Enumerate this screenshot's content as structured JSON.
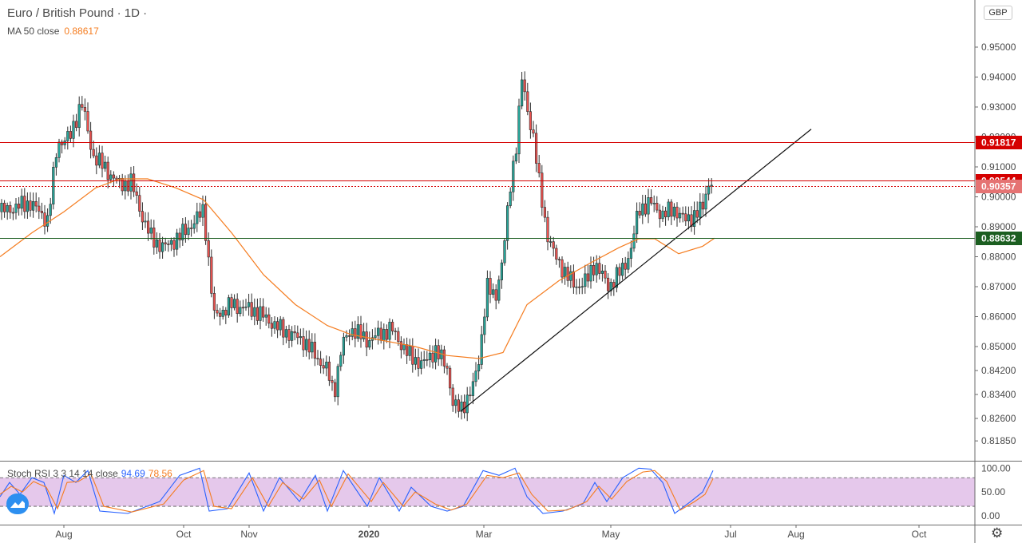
{
  "header": {
    "title": "Euro / British Pound · 1D ·",
    "ma_label": "MA 50 close",
    "ma_value": "0.88617",
    "currency": "GBP"
  },
  "stoch": {
    "label": "Stoch RSI 3 3 14 14 close",
    "k_value": "94.69",
    "d_value": "78.56"
  },
  "colors": {
    "up": "#26a69a",
    "down": "#ef5350",
    "ma": "#f57c1f",
    "resistance": "#d50000",
    "support": "#1b5e20",
    "stoch_k": "#2962ff",
    "stoch_d": "#f57c1f",
    "stoch_band": "#e1bee7"
  },
  "icons": {
    "logo": "tradingview-logo-icon",
    "settings": "gear-icon"
  },
  "chart_data": [
    {
      "type": "candlestick",
      "title": "Euro / British Pound · 1D ·",
      "ylim": [
        0.8125,
        0.9595
      ],
      "x_ticks": [
        "Aug",
        "Oct",
        "Nov",
        "2020",
        "Mar",
        "May",
        "Jul",
        "Aug",
        "Oct"
      ],
      "y_ticks": [
        "0.95000",
        "0.94000",
        "0.93000",
        "0.92000",
        "0.91000",
        "0.90000",
        "0.89000",
        "0.88000",
        "0.87000",
        "0.86000",
        "0.85000",
        "0.84200",
        "0.83400",
        "0.82600",
        "0.81850"
      ],
      "price_path": [
        [
          0,
          0.895
        ],
        [
          38,
          0.898
        ],
        [
          60,
          0.892
        ],
        [
          72,
          0.918
        ],
        [
          88,
          0.92
        ],
        [
          102,
          0.932
        ],
        [
          116,
          0.914
        ],
        [
          130,
          0.91
        ],
        [
          150,
          0.904
        ],
        [
          164,
          0.905
        ],
        [
          180,
          0.892
        ],
        [
          190,
          0.886
        ],
        [
          206,
          0.883
        ],
        [
          230,
          0.888
        ],
        [
          248,
          0.893
        ],
        [
          255,
          0.896
        ],
        [
          260,
          0.882
        ],
        [
          268,
          0.86
        ],
        [
          290,
          0.864
        ],
        [
          320,
          0.862
        ],
        [
          350,
          0.856
        ],
        [
          380,
          0.852
        ],
        [
          398,
          0.846
        ],
        [
          410,
          0.842
        ],
        [
          418,
          0.834
        ],
        [
          428,
          0.85
        ],
        [
          440,
          0.856
        ],
        [
          460,
          0.852
        ],
        [
          490,
          0.856
        ],
        [
          512,
          0.847
        ],
        [
          530,
          0.844
        ],
        [
          545,
          0.849
        ],
        [
          560,
          0.843
        ],
        [
          568,
          0.83
        ],
        [
          577,
          0.829
        ],
        [
          592,
          0.836
        ],
        [
          600,
          0.846
        ],
        [
          610,
          0.87
        ],
        [
          620,
          0.866
        ],
        [
          630,
          0.88
        ],
        [
          640,
          0.906
        ],
        [
          648,
          0.92
        ],
        [
          653,
          0.94
        ],
        [
          660,
          0.93
        ],
        [
          668,
          0.92
        ],
        [
          675,
          0.905
        ],
        [
          685,
          0.888
        ],
        [
          695,
          0.88
        ],
        [
          705,
          0.876
        ],
        [
          720,
          0.87
        ],
        [
          735,
          0.872
        ],
        [
          745,
          0.878
        ],
        [
          762,
          0.87
        ],
        [
          780,
          0.876
        ],
        [
          790,
          0.882
        ],
        [
          800,
          0.896
        ],
        [
          815,
          0.898
        ],
        [
          830,
          0.894
        ],
        [
          845,
          0.896
        ],
        [
          858,
          0.892
        ],
        [
          870,
          0.894
        ],
        [
          880,
          0.896
        ],
        [
          886,
          0.904
        ],
        [
          892,
          0.9054
        ]
      ],
      "candle_x_range": [
        0,
        893
      ],
      "ma50": [
        [
          0,
          0.88
        ],
        [
          40,
          0.888
        ],
        [
          80,
          0.895
        ],
        [
          120,
          0.903
        ],
        [
          150,
          0.906
        ],
        [
          185,
          0.906
        ],
        [
          220,
          0.903
        ],
        [
          255,
          0.899
        ],
        [
          290,
          0.888
        ],
        [
          330,
          0.874
        ],
        [
          370,
          0.864
        ],
        [
          410,
          0.857
        ],
        [
          440,
          0.854
        ],
        [
          480,
          0.852
        ],
        [
          520,
          0.85
        ],
        [
          560,
          0.847
        ],
        [
          600,
          0.846
        ],
        [
          630,
          0.848
        ],
        [
          660,
          0.864
        ],
        [
          700,
          0.872
        ],
        [
          740,
          0.878
        ],
        [
          775,
          0.883
        ],
        [
          800,
          0.886
        ],
        [
          820,
          0.886
        ],
        [
          850,
          0.881
        ],
        [
          880,
          0.8835
        ],
        [
          895,
          0.8862
        ]
      ],
      "trendline": [
        [
          577,
          0.8284
        ],
        [
          1016,
          0.9226
        ]
      ],
      "horizontal_lines": [
        {
          "label": "0.91817",
          "value": 0.91817,
          "role": "resistance",
          "style": "solid"
        },
        {
          "label": "0.90544",
          "value": 0.90544,
          "role": "resistance",
          "style": "solid"
        },
        {
          "label": "0.90357",
          "value": 0.90357,
          "role": "resistance",
          "style": "dotted"
        },
        {
          "label": "0.88632",
          "value": 0.88632,
          "role": "support",
          "style": "solid"
        }
      ],
      "grid": false
    },
    {
      "type": "line",
      "title": "Stoch RSI 3 3 14 14 close",
      "ylim": [
        -3,
        105
      ],
      "y_ticks": [
        "100.00",
        "50.00",
        "0.00"
      ],
      "band": [
        20,
        80
      ],
      "series": [
        {
          "name": "K",
          "values": [
            [
              0,
              40
            ],
            [
              12,
              70
            ],
            [
              25,
              45
            ],
            [
              40,
              80
            ],
            [
              55,
              70
            ],
            [
              68,
              5
            ],
            [
              80,
              85
            ],
            [
              95,
              70
            ],
            [
              110,
              95
            ],
            [
              125,
              10
            ],
            [
              160,
              5
            ],
            [
              200,
              30
            ],
            [
              225,
              85
            ],
            [
              250,
              100
            ],
            [
              262,
              10
            ],
            [
              285,
              15
            ],
            [
              312,
              90
            ],
            [
              330,
              10
            ],
            [
              350,
              80
            ],
            [
              375,
              30
            ],
            [
              395,
              85
            ],
            [
              410,
              10
            ],
            [
              430,
              95
            ],
            [
              460,
              20
            ],
            [
              475,
              80
            ],
            [
              500,
              10
            ],
            [
              515,
              60
            ],
            [
              540,
              20
            ],
            [
              560,
              10
            ],
            [
              580,
              20
            ],
            [
              605,
              95
            ],
            [
              625,
              85
            ],
            [
              645,
              100
            ],
            [
              660,
              40
            ],
            [
              680,
              5
            ],
            [
              705,
              10
            ],
            [
              730,
              25
            ],
            [
              745,
              70
            ],
            [
              760,
              30
            ],
            [
              780,
              80
            ],
            [
              800,
              100
            ],
            [
              815,
              98
            ],
            [
              830,
              70
            ],
            [
              845,
              5
            ],
            [
              865,
              30
            ],
            [
              880,
              50
            ],
            [
              893,
              95
            ]
          ]
        },
        {
          "name": "D",
          "values": [
            [
              0,
              45
            ],
            [
              14,
              62
            ],
            [
              28,
              50
            ],
            [
              42,
              72
            ],
            [
              58,
              60
            ],
            [
              72,
              15
            ],
            [
              84,
              70
            ],
            [
              98,
              72
            ],
            [
              114,
              88
            ],
            [
              130,
              20
            ],
            [
              165,
              8
            ],
            [
              205,
              25
            ],
            [
              230,
              75
            ],
            [
              255,
              95
            ],
            [
              268,
              20
            ],
            [
              290,
              15
            ],
            [
              316,
              80
            ],
            [
              336,
              20
            ],
            [
              354,
              70
            ],
            [
              380,
              35
            ],
            [
              400,
              75
            ],
            [
              415,
              20
            ],
            [
              436,
              88
            ],
            [
              465,
              30
            ],
            [
              480,
              70
            ],
            [
              505,
              20
            ],
            [
              520,
              50
            ],
            [
              545,
              25
            ],
            [
              565,
              12
            ],
            [
              585,
              25
            ],
            [
              610,
              85
            ],
            [
              630,
              80
            ],
            [
              650,
              90
            ],
            [
              666,
              45
            ],
            [
              686,
              10
            ],
            [
              710,
              12
            ],
            [
              735,
              30
            ],
            [
              750,
              62
            ],
            [
              766,
              35
            ],
            [
              785,
              72
            ],
            [
              805,
              92
            ],
            [
              820,
              95
            ],
            [
              835,
              72
            ],
            [
              852,
              12
            ],
            [
              870,
              30
            ],
            [
              883,
              45
            ],
            [
              893,
              78
            ]
          ]
        }
      ]
    }
  ]
}
